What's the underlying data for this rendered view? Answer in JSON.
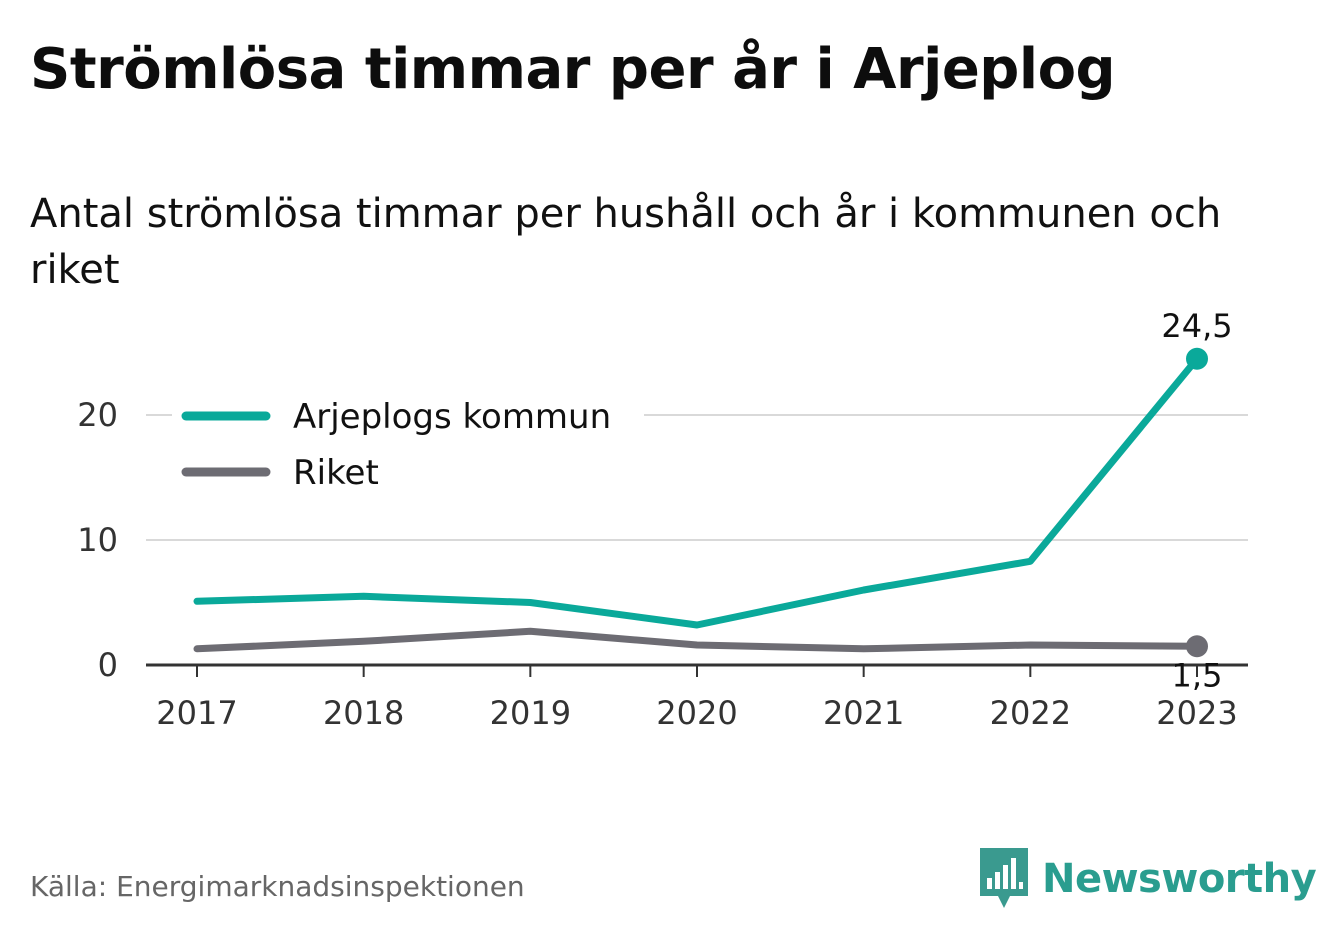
{
  "title": "Strömlösa timmar per år i Arjeplog",
  "subtitle": "Antal strömlösa timmar per hushåll och år i kommunen och riket",
  "source": "Källa: Energimarknadsinspektionen",
  "brand": {
    "name": "Newsworthy",
    "icon": "newsworthy-logo-icon",
    "color": "#3a9a8f"
  },
  "chart_data": {
    "type": "line",
    "x": [
      "2017",
      "2018",
      "2019",
      "2020",
      "2021",
      "2022",
      "2023"
    ],
    "ylim": [
      0,
      26
    ],
    "yticks": [
      {
        "value": 0,
        "label": "0"
      },
      {
        "value": 10,
        "label": "10"
      },
      {
        "value": 20,
        "label": "20"
      }
    ],
    "grid": true,
    "legend_position": "top-left",
    "series": [
      {
        "name": "Arjeplogs kommun",
        "color": "#0aa99a",
        "values": [
          5.1,
          5.5,
          5.0,
          3.2,
          6.0,
          8.3,
          24.5
        ],
        "end_label": "24,5"
      },
      {
        "name": "Riket",
        "color": "#6d6c73",
        "values": [
          1.3,
          1.9,
          2.7,
          1.6,
          1.3,
          1.6,
          1.5
        ],
        "end_label": "1,5"
      }
    ]
  }
}
